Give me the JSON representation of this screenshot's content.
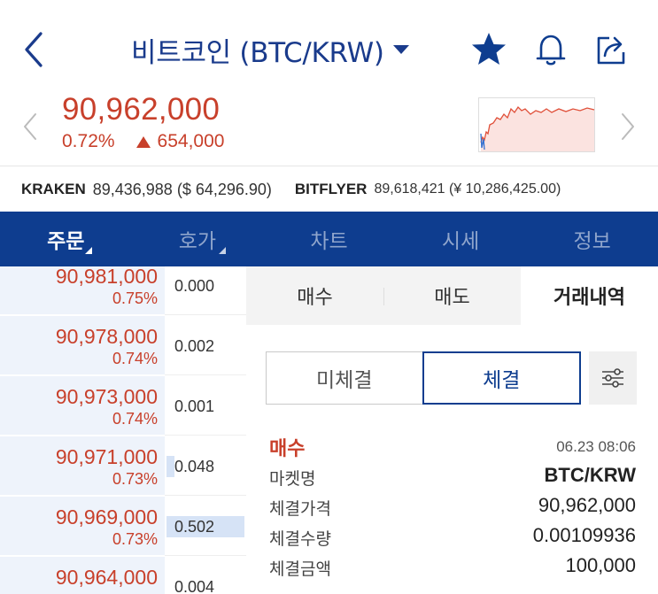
{
  "header": {
    "title": "비트코인 (BTC/KRW)"
  },
  "summary": {
    "price": "90,962,000",
    "change_pct": "0.72%",
    "change_amount": "654,000",
    "colors": {
      "up": "#c8402b",
      "chart_line": "#e0503a",
      "chart_fill": "#fbe3e0"
    }
  },
  "exchanges": [
    {
      "name": "KRAKEN",
      "value": "89,436,988 ($ 64,296.90)"
    },
    {
      "name": "BITFLYER",
      "value": "89,618,421 (¥ 10,286,425.00)"
    }
  ],
  "tabs": [
    {
      "label": "주문",
      "active": true
    },
    {
      "label": "호가",
      "active": false
    },
    {
      "label": "차트",
      "active": false
    },
    {
      "label": "시세",
      "active": false
    },
    {
      "label": "정보",
      "active": false
    }
  ],
  "orderbook": {
    "rows": [
      {
        "price": "90,981,000",
        "pct": "0.75%",
        "qty": "0.000",
        "level": 0.0
      },
      {
        "price": "90,978,000",
        "pct": "0.74%",
        "qty": "0.002",
        "level": 0.0
      },
      {
        "price": "90,973,000",
        "pct": "0.74%",
        "qty": "0.001",
        "level": 0.0
      },
      {
        "price": "90,971,000",
        "pct": "0.73%",
        "qty": "0.048",
        "level": 0.1
      },
      {
        "price": "90,969,000",
        "pct": "0.73%",
        "qty": "0.502",
        "level": 1.0
      },
      {
        "price": "90,964,000",
        "pct": "",
        "qty": "0.004",
        "level": 0.0
      }
    ]
  },
  "panel": {
    "segments": [
      {
        "label": "매수",
        "active": false
      },
      {
        "label": "매도",
        "active": false
      },
      {
        "label": "거래내역",
        "active": true
      }
    ],
    "toggle": {
      "unfilled": "미체결",
      "filled": "체결"
    },
    "trade": {
      "type": "매수",
      "time": "06.23 08:06",
      "rows": [
        {
          "label": "마켓명",
          "value": "BTC/KRW",
          "bold": true
        },
        {
          "label": "체결가격",
          "value": "90,962,000",
          "bold": false
        },
        {
          "label": "체결수량",
          "value": "0.00109936",
          "bold": false
        },
        {
          "label": "체결금액",
          "value": "100,000",
          "bold": false
        }
      ]
    }
  },
  "icons": [
    "back-chevron-icon",
    "caret-down-icon",
    "star-icon",
    "bell-icon",
    "share-icon",
    "chevron-left-icon",
    "chevron-right-icon",
    "up-triangle-icon",
    "filter-sliders-icon"
  ]
}
